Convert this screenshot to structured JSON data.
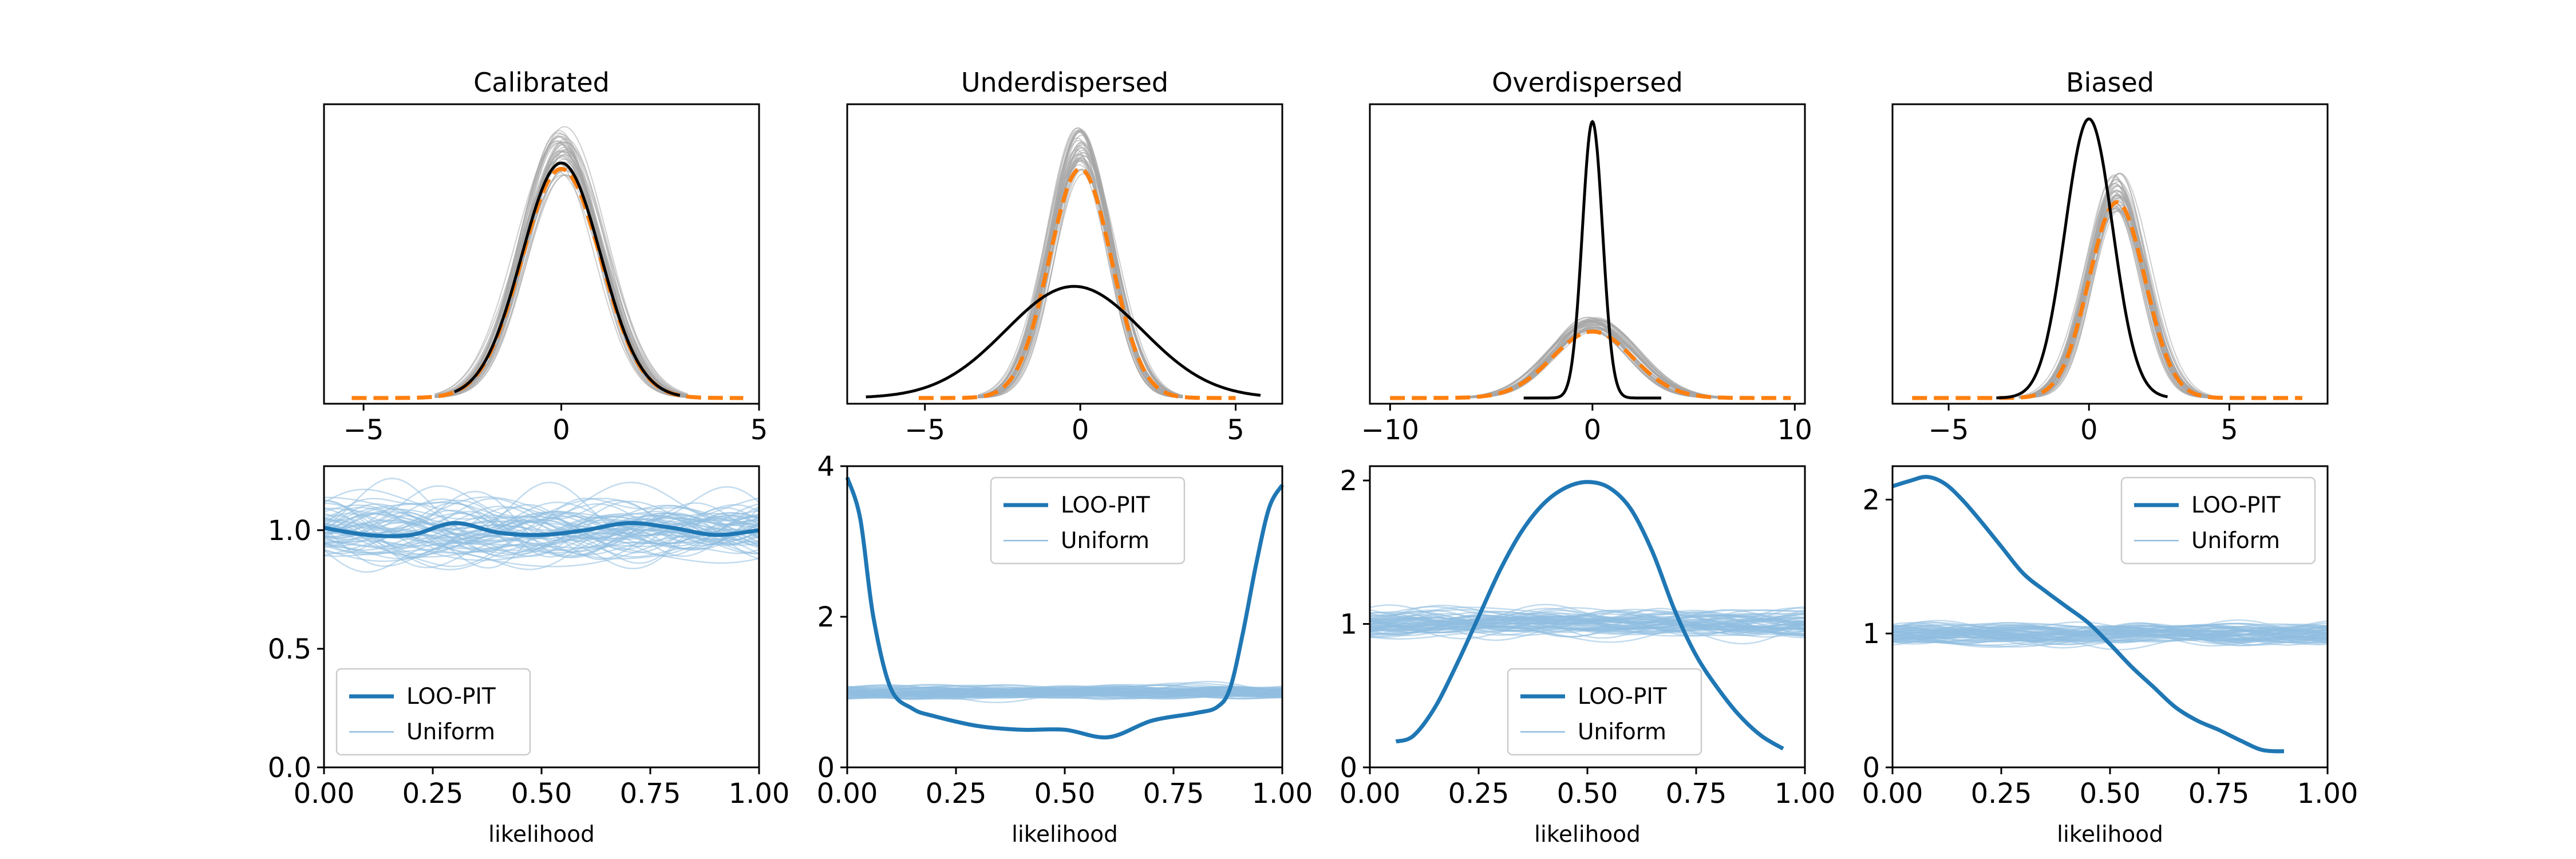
{
  "chart_data": [
    {
      "type": "line",
      "title": "Calibrated",
      "xlim": [
        -6,
        5
      ],
      "xticks": [
        "−5",
        "0",
        "5"
      ],
      "xtick_values": [
        -5,
        0,
        5
      ],
      "ylim": [
        0,
        0.5
      ],
      "series": [
        {
          "role": "posterior_predictive",
          "color": "#a6a6a6",
          "mean": 0,
          "sd": 1.0,
          "peak": 0.42,
          "range": [
            -3.2,
            3.2
          ],
          "draws": 40
        },
        {
          "role": "mean",
          "color": "#ff7f0e",
          "mean": 0,
          "sd": 1.0,
          "peak": 0.39,
          "range": [
            -5.3,
            4.6
          ]
        },
        {
          "role": "observed",
          "color": "#000000",
          "mean": 0,
          "sd": 1.0,
          "peak": 0.4,
          "range": [
            -2.7,
            3.0
          ]
        }
      ]
    },
    {
      "type": "line",
      "title": "Underdispersed",
      "xlim": [
        -7.5,
        6.5
      ],
      "xticks": [
        "−5",
        "0",
        "5"
      ],
      "xtick_values": [
        -5,
        0,
        5
      ],
      "ylim": [
        0,
        0.5
      ],
      "series": [
        {
          "role": "posterior_predictive",
          "color": "#a6a6a6",
          "mean": 0,
          "sd": 1.0,
          "peak": 0.42,
          "range": [
            -3.3,
            3.3
          ],
          "draws": 40
        },
        {
          "role": "mean",
          "color": "#ff7f0e",
          "mean": 0,
          "sd": 1.0,
          "peak": 0.39,
          "range": [
            -5.2,
            5.0
          ]
        },
        {
          "role": "observed",
          "color": "#000000",
          "mean": -0.2,
          "sd": 2.2,
          "peak": 0.19,
          "range": [
            -6.9,
            5.8
          ]
        }
      ]
    },
    {
      "type": "line",
      "title": "Overdispersed",
      "xlim": [
        -11,
        10.5
      ],
      "xticks": [
        "−10",
        "0",
        "10"
      ],
      "xtick_values": [
        -10,
        0,
        10
      ],
      "ylim": [
        0,
        0.84
      ],
      "series": [
        {
          "role": "posterior_predictive",
          "color": "#a6a6a6",
          "mean": 0,
          "sd": 2.0,
          "peak": 0.21,
          "range": [
            -6.5,
            6.5
          ],
          "draws": 40
        },
        {
          "role": "mean",
          "color": "#ff7f0e",
          "mean": 0,
          "sd": 2.0,
          "peak": 0.19,
          "range": [
            -10,
            9.8
          ]
        },
        {
          "role": "observed",
          "color": "#000000",
          "mean": 0,
          "sd": 0.5,
          "peak": 0.79,
          "range": [
            -3.4,
            3.4
          ]
        }
      ]
    },
    {
      "type": "line",
      "title": "Biased",
      "xlim": [
        -7,
        8.5
      ],
      "xticks": [
        "−5",
        "0",
        "5"
      ],
      "xtick_values": [
        -5,
        0,
        5
      ],
      "ylim": [
        0,
        0.6
      ],
      "series": [
        {
          "role": "posterior_predictive",
          "color": "#a6a6a6",
          "mean": 1,
          "sd": 1.0,
          "peak": 0.42,
          "range": [
            -2.5,
            4.7
          ],
          "draws": 40
        },
        {
          "role": "mean",
          "color": "#ff7f0e",
          "mean": 1,
          "sd": 1.0,
          "peak": 0.4,
          "range": [
            -6.3,
            7.6
          ]
        },
        {
          "role": "observed",
          "color": "#000000",
          "mean": 0,
          "sd": 0.85,
          "peak": 0.57,
          "range": [
            -3.3,
            2.8
          ]
        }
      ]
    },
    {
      "type": "line",
      "xlabel": "likelihood",
      "xlim": [
        0,
        1
      ],
      "ylim": [
        0,
        1.27
      ],
      "xticks": [
        "0.00",
        "0.25",
        "0.50",
        "0.75",
        "1.00"
      ],
      "xtick_values": [
        0,
        0.25,
        0.5,
        0.75,
        1
      ],
      "yticks": [
        "0.0",
        "0.5",
        "1.0"
      ],
      "ytick_values": [
        0,
        0.5,
        1.0
      ],
      "legend": {
        "location": "lower-left",
        "entries": [
          "LOO-PIT",
          "Uniform"
        ]
      },
      "uniform": {
        "color": "#8fbde0",
        "center": 1.0,
        "band": 0.2,
        "draws": 60
      },
      "loo_pit": {
        "color": "#1f77b4",
        "x": [
          0,
          0.1,
          0.2,
          0.3,
          0.4,
          0.5,
          0.6,
          0.7,
          0.8,
          0.9,
          1.0
        ],
        "y": [
          1.01,
          0.98,
          0.98,
          1.03,
          0.99,
          0.98,
          1.0,
          1.03,
          1.01,
          0.98,
          1.0
        ]
      }
    },
    {
      "type": "line",
      "xlabel": "likelihood",
      "xlim": [
        0,
        1
      ],
      "ylim": [
        0,
        4.0
      ],
      "xticks": [
        "0.00",
        "0.25",
        "0.50",
        "0.75",
        "1.00"
      ],
      "xtick_values": [
        0,
        0.25,
        0.5,
        0.75,
        1
      ],
      "yticks": [
        "0",
        "2",
        "4"
      ],
      "ytick_values": [
        0,
        2,
        4
      ],
      "legend": {
        "location": "upper-center",
        "entries": [
          "LOO-PIT",
          "Uniform"
        ]
      },
      "uniform": {
        "color": "#8fbde0",
        "center": 1.0,
        "band": 0.13,
        "draws": 60
      },
      "loo_pit": {
        "color": "#1f77b4",
        "x": [
          0,
          0.03,
          0.06,
          0.1,
          0.15,
          0.2,
          0.3,
          0.4,
          0.5,
          0.6,
          0.7,
          0.8,
          0.85,
          0.88,
          0.91,
          0.94,
          0.97,
          1.0
        ],
        "y": [
          3.85,
          3.3,
          2.0,
          1.05,
          0.78,
          0.68,
          0.55,
          0.5,
          0.5,
          0.4,
          0.62,
          0.72,
          0.8,
          1.05,
          1.8,
          2.7,
          3.45,
          3.75
        ]
      }
    },
    {
      "type": "line",
      "xlabel": "likelihood",
      "xlim": [
        0,
        1
      ],
      "ylim": [
        0,
        2.1
      ],
      "xticks": [
        "0.00",
        "0.25",
        "0.50",
        "0.75",
        "1.00"
      ],
      "xtick_values": [
        0,
        0.25,
        0.5,
        0.75,
        1
      ],
      "yticks": [
        "0",
        "1",
        "2"
      ],
      "ytick_values": [
        0,
        1,
        2
      ],
      "legend": {
        "location": "lower-center",
        "entries": [
          "LOO-PIT",
          "Uniform"
        ]
      },
      "uniform": {
        "color": "#8fbde0",
        "center": 1.0,
        "band": 0.14,
        "draws": 60
      },
      "loo_pit": {
        "color": "#1f77b4",
        "x": [
          0.06,
          0.1,
          0.15,
          0.2,
          0.25,
          0.3,
          0.35,
          0.4,
          0.45,
          0.5,
          0.55,
          0.6,
          0.65,
          0.7,
          0.75,
          0.8,
          0.85,
          0.9,
          0.95
        ],
        "y": [
          0.18,
          0.22,
          0.42,
          0.72,
          1.05,
          1.38,
          1.65,
          1.84,
          1.95,
          1.99,
          1.95,
          1.8,
          1.5,
          1.1,
          0.78,
          0.55,
          0.36,
          0.22,
          0.13
        ]
      }
    },
    {
      "type": "line",
      "xlabel": "likelihood",
      "xlim": [
        0,
        1
      ],
      "ylim": [
        0,
        2.25
      ],
      "xticks": [
        "0.00",
        "0.25",
        "0.50",
        "0.75",
        "1.00"
      ],
      "xtick_values": [
        0,
        0.25,
        0.5,
        0.75,
        1
      ],
      "yticks": [
        "0",
        "1",
        "2"
      ],
      "ytick_values": [
        0,
        1,
        2
      ],
      "legend": {
        "location": "upper-right",
        "entries": [
          "LOO-PIT",
          "Uniform"
        ]
      },
      "uniform": {
        "color": "#8fbde0",
        "center": 1.0,
        "band": 0.12,
        "draws": 60
      },
      "loo_pit": {
        "color": "#1f77b4",
        "x": [
          0,
          0.04,
          0.08,
          0.12,
          0.16,
          0.2,
          0.25,
          0.3,
          0.35,
          0.4,
          0.45,
          0.5,
          0.55,
          0.6,
          0.65,
          0.7,
          0.75,
          0.8,
          0.85,
          0.9
        ],
        "y": [
          2.1,
          2.14,
          2.17,
          2.12,
          2.0,
          1.85,
          1.65,
          1.45,
          1.32,
          1.2,
          1.08,
          0.92,
          0.75,
          0.6,
          0.45,
          0.35,
          0.28,
          0.2,
          0.13,
          0.12
        ]
      }
    }
  ]
}
